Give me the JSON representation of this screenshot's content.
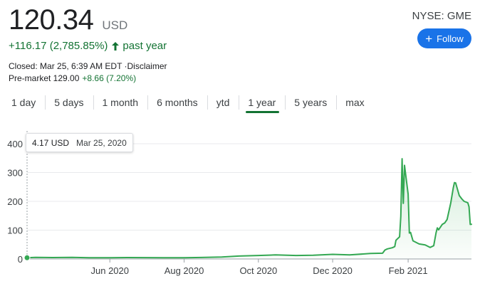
{
  "quote": {
    "price": "120.34",
    "currency": "USD",
    "ticker": "NYSE: GME",
    "change": "+116.17 (2,785.85%)",
    "period": "past year",
    "closed_text": "Closed: Mar 25, 6:39 AM EDT ·Disclaimer",
    "premarket_text": "Pre-market 129.00",
    "premarket_change": "+8.66 (7.20%)",
    "accent_color": "#137333"
  },
  "follow": {
    "label": "Follow",
    "icon": "plus-icon",
    "color": "#1a73e8"
  },
  "tabs": [
    {
      "label": "1 day",
      "active": false
    },
    {
      "label": "5 days",
      "active": false
    },
    {
      "label": "1 month",
      "active": false
    },
    {
      "label": "6 months",
      "active": false
    },
    {
      "label": "ytd",
      "active": false
    },
    {
      "label": "1 year",
      "active": true
    },
    {
      "label": "5 years",
      "active": false
    },
    {
      "label": "max",
      "active": false
    }
  ],
  "tooltip": {
    "value": "4.17 USD",
    "date": "Mar 25, 2020"
  },
  "chart_data": {
    "type": "line",
    "ylim": [
      0,
      400
    ],
    "yticks": [
      0,
      100,
      200,
      300,
      400
    ],
    "xtick_labels": [
      "Jun 2020",
      "Aug 2020",
      "Oct 2020",
      "Dec 2020",
      "Feb 2021"
    ],
    "xtick_dates": [
      "2020-06-01",
      "2020-08-01",
      "2020-10-01",
      "2020-12-01",
      "2021-02-01"
    ],
    "xlim": [
      "2020-03-25",
      "2021-03-25"
    ],
    "grid": true,
    "line_color": "#34a853",
    "highlight_date": "2020-03-25",
    "series": [
      {
        "x": [
          "2020-03-25",
          "2020-04-01",
          "2020-04-15",
          "2020-05-01",
          "2020-05-15",
          "2020-06-01",
          "2020-06-15",
          "2020-07-01",
          "2020-07-15",
          "2020-08-01",
          "2020-08-15",
          "2020-09-01",
          "2020-09-15",
          "2020-10-01",
          "2020-10-15",
          "2020-11-01",
          "2020-11-15",
          "2020-12-01",
          "2020-12-15",
          "2021-01-01",
          "2021-01-11",
          "2021-01-13",
          "2021-01-15",
          "2021-01-19",
          "2021-01-21",
          "2021-01-22",
          "2021-01-25",
          "2021-01-26",
          "2021-01-27",
          "2021-01-28",
          "2021-01-29",
          "2021-02-01",
          "2021-02-02",
          "2021-02-03",
          "2021-02-05",
          "2021-02-10",
          "2021-02-15",
          "2021-02-19",
          "2021-02-22",
          "2021-02-24",
          "2021-02-25",
          "2021-02-26",
          "2021-03-01",
          "2021-03-03",
          "2021-03-05",
          "2021-03-08",
          "2021-03-10",
          "2021-03-11",
          "2021-03-12",
          "2021-03-15",
          "2021-03-17",
          "2021-03-19",
          "2021-03-22",
          "2021-03-23",
          "2021-03-24",
          "2021-03-25"
        ],
        "y": [
          4.17,
          5.5,
          5.0,
          5.5,
          4.5,
          4.5,
          5.0,
          4.8,
          4.3,
          4.2,
          5.2,
          7.0,
          10.0,
          12.0,
          14.0,
          12.0,
          13.0,
          16.0,
          14.0,
          19.0,
          20.0,
          31.0,
          35.0,
          39.0,
          43.0,
          65.0,
          77.0,
          148.0,
          348.0,
          193.0,
          325.0,
          225.0,
          90.0,
          92.0,
          63.0,
          52.0,
          49.0,
          40.0,
          46.0,
          92.0,
          108.0,
          101.0,
          120.0,
          125.0,
          137.0,
          194.0,
          246.0,
          265.0,
          264.0,
          220.0,
          209.0,
          200.0,
          195.0,
          181.0,
          120.0,
          120.34
        ]
      }
    ]
  }
}
